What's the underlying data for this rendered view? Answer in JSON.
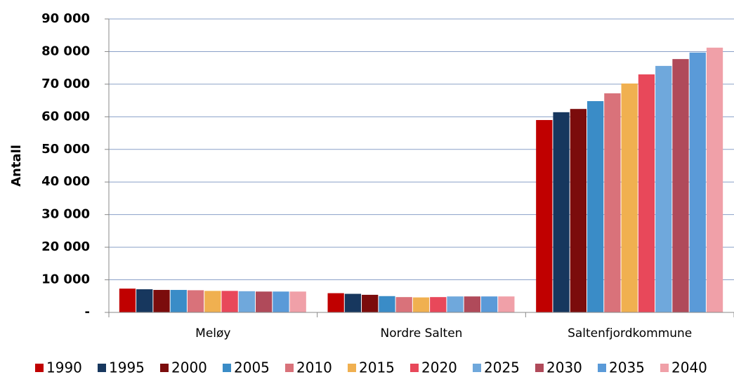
{
  "chart_data": {
    "type": "bar",
    "y_label": "Antall",
    "categories": [
      "Meløy",
      "Nordre Salten",
      "Saltenfjordkommune"
    ],
    "series": [
      {
        "name": "1990",
        "color": "#c00000",
        "values": [
          7300,
          5900,
          59000
        ]
      },
      {
        "name": "1995",
        "color": "#17375e",
        "values": [
          7100,
          5700,
          61400
        ]
      },
      {
        "name": "2000",
        "color": "#7b0c0c",
        "values": [
          6900,
          5400,
          62400
        ]
      },
      {
        "name": "2005",
        "color": "#3a8cc7",
        "values": [
          6900,
          5000,
          64800
        ]
      },
      {
        "name": "2010",
        "color": "#d9727a",
        "values": [
          6800,
          4700,
          67200
        ]
      },
      {
        "name": "2015",
        "color": "#f0b050",
        "values": [
          6600,
          4600,
          70200
        ]
      },
      {
        "name": "2020",
        "color": "#e8485a",
        "values": [
          6600,
          4700,
          73000
        ]
      },
      {
        "name": "2025",
        "color": "#6fa8dc",
        "values": [
          6500,
          4900,
          75600
        ]
      },
      {
        "name": "2030",
        "color": "#b04a5a",
        "values": [
          6400,
          4900,
          77700
        ]
      },
      {
        "name": "2035",
        "color": "#5a9ad8",
        "values": [
          6400,
          4900,
          79700
        ]
      },
      {
        "name": "2040",
        "color": "#f0a0a8",
        "values": [
          6400,
          4900,
          81200
        ]
      }
    ],
    "ylim": [
      0,
      90000
    ],
    "yticks": [
      {
        "value": 0,
        "label": "-"
      },
      {
        "value": 10000,
        "label": "10 000"
      },
      {
        "value": 20000,
        "label": "20 000"
      },
      {
        "value": 30000,
        "label": "30 000"
      },
      {
        "value": 40000,
        "label": "40 000"
      },
      {
        "value": 50000,
        "label": "50 000"
      },
      {
        "value": 60000,
        "label": "60 000"
      },
      {
        "value": 70000,
        "label": "70 000"
      },
      {
        "value": 80000,
        "label": "80 000"
      },
      {
        "value": 90000,
        "label": "90 000"
      }
    ],
    "grid": true,
    "legend": "bottom"
  }
}
